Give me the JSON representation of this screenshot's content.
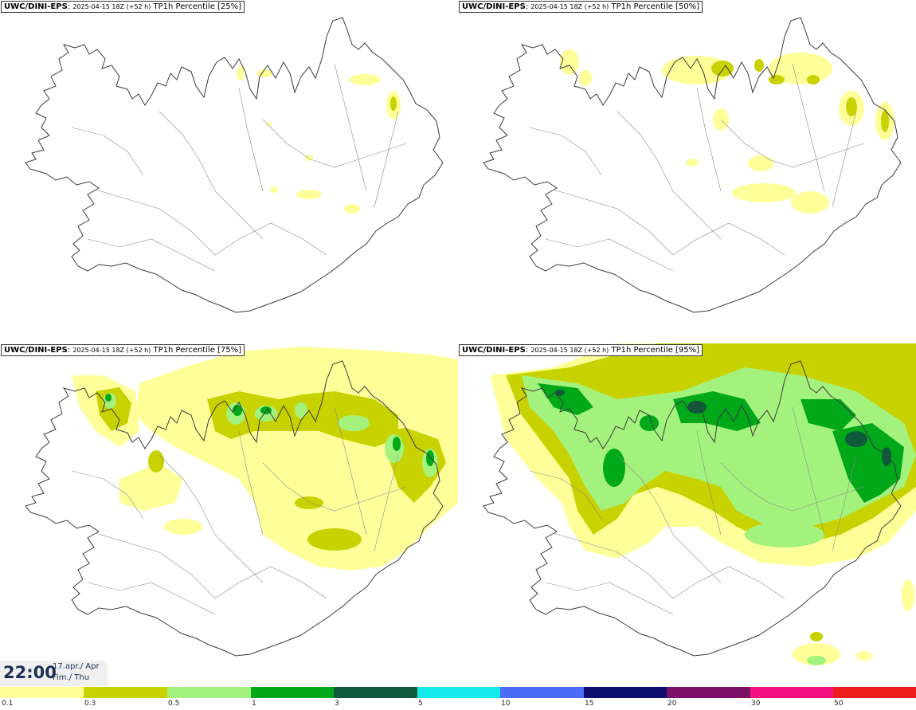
{
  "panels": [
    {
      "model": "UWC/DINI-EPS",
      "run": "2025-04-15 18Z (+52 h)",
      "product": "TP1h Percentile [25%]"
    },
    {
      "model": "UWC/DINI-EPS",
      "run": "2025-04-15 18Z (+52 h)",
      "product": "TP1h Percentile [50%]"
    },
    {
      "model": "UWC/DINI-EPS",
      "run": "2025-04-15 18Z (+52 h)",
      "product": "TP1h Percentile [75%]"
    },
    {
      "model": "UWC/DINI-EPS",
      "run": "2025-04-15 18Z (+52 h)",
      "product": "TP1h Percentile [95%]"
    }
  ],
  "valid_time": {
    "clock": "22:00",
    "line1": "17.apr./ Apr",
    "line2": "Fim./ Thu"
  },
  "legend": {
    "ticks": [
      "0.1",
      "0.3",
      "0.5",
      "1",
      "3",
      "5",
      "10",
      "15",
      "20",
      "30",
      "50"
    ],
    "colors": [
      "#ffff9a",
      "#c8d200",
      "#a4f27e",
      "#00a81a",
      "#0e5a3a",
      "#14eaea",
      "#4a6cf6",
      "#0d0d6e",
      "#7c1066",
      "#f2117e",
      "#ee1c1c"
    ]
  },
  "precip_colors": {
    "l1": "#ffff9a",
    "l2": "#c8d200",
    "l3": "#a4f27e",
    "l4": "#00a81a",
    "l5": "#0e5a3a"
  }
}
